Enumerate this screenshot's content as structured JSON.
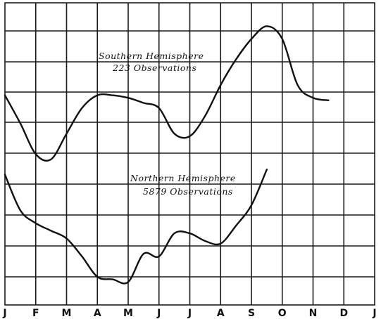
{
  "chart_data": {
    "type": "line",
    "title": "",
    "xlabel": "",
    "ylabel": "",
    "categories": [
      "J",
      "F",
      "M",
      "A",
      "M",
      "J",
      "J",
      "A",
      "S",
      "O",
      "N",
      "D",
      "J"
    ],
    "grid": true,
    "legend": "none",
    "ylim": [
      0,
      100
    ],
    "series": [
      {
        "label_line1": "Southern    Hemisphere",
        "label_line2": "223   Observations",
        "values": [
          [
            0,
            71
          ],
          [
            0.5,
            60
          ],
          [
            1,
            48
          ],
          [
            1.5,
            46
          ],
          [
            2,
            56
          ],
          [
            2.5,
            66
          ],
          [
            3,
            71
          ],
          [
            3.5,
            71
          ],
          [
            4,
            70
          ],
          [
            4.5,
            68
          ],
          [
            5,
            66
          ],
          [
            5.5,
            56
          ],
          [
            6,
            55
          ],
          [
            6.5,
            63
          ],
          [
            7,
            75
          ],
          [
            7.5,
            85
          ],
          [
            8,
            93
          ],
          [
            8.5,
            98
          ],
          [
            9,
            93
          ],
          [
            9.5,
            75
          ],
          [
            10,
            70
          ],
          [
            10.5,
            69
          ]
        ]
      },
      {
        "label_line1": "Northern    Hemisphere",
        "label_line2": "5879   Observations",
        "values": [
          [
            0,
            40
          ],
          [
            0.5,
            26
          ],
          [
            1,
            21
          ],
          [
            1.5,
            18
          ],
          [
            2,
            15
          ],
          [
            2.5,
            8
          ],
          [
            3,
            0
          ],
          [
            3.5,
            -1
          ],
          [
            4,
            -2
          ],
          [
            4.5,
            9
          ],
          [
            5,
            8
          ],
          [
            5.5,
            17
          ],
          [
            6,
            17
          ],
          [
            6.5,
            14
          ],
          [
            7,
            13
          ],
          [
            7.5,
            20
          ],
          [
            8,
            28
          ],
          [
            8.5,
            42
          ]
        ]
      }
    ]
  }
}
